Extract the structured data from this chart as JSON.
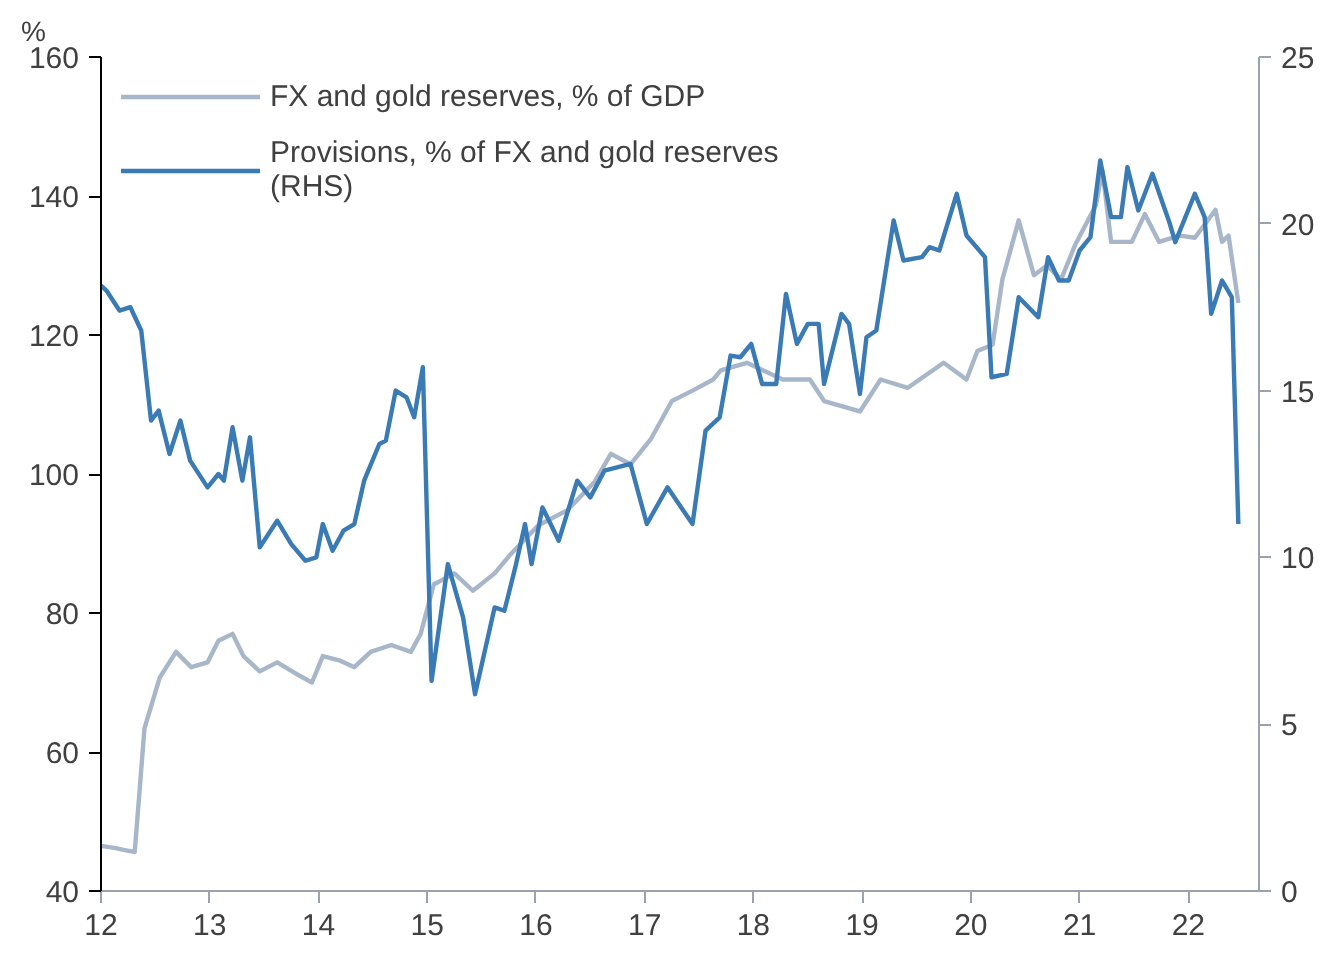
{
  "chart_data": {
    "type": "line",
    "ylabel": "%",
    "xlim": [
      12,
      22.65
    ],
    "xticks": [
      12,
      13,
      14,
      15,
      16,
      17,
      18,
      19,
      20,
      21,
      22
    ],
    "ylim": [
      40,
      160
    ],
    "yticks": [
      40,
      60,
      80,
      100,
      120,
      140,
      160
    ],
    "y2lim": [
      0,
      25
    ],
    "y2ticks": [
      0,
      5,
      10,
      15,
      20,
      25
    ],
    "grid": false,
    "legend": "top left",
    "series": [
      {
        "name": "FX and gold reserves, % of GDP",
        "color": "#a8b6ca",
        "x": [
          12.0,
          12.12,
          12.31,
          12.4,
          12.54,
          12.69,
          12.83,
          12.98,
          13.08,
          13.21,
          13.31,
          13.46,
          13.62,
          13.79,
          13.94,
          14.04,
          14.19,
          14.33,
          14.48,
          14.67,
          14.85,
          14.94,
          15.06,
          15.25,
          15.42,
          15.62,
          15.77,
          16.02,
          16.29,
          16.54,
          16.69,
          16.87,
          17.06,
          17.25,
          17.44,
          17.63,
          17.7,
          17.94,
          18.27,
          18.52,
          18.65,
          18.98,
          19.17,
          19.42,
          19.75,
          19.96,
          20.06,
          20.2,
          20.29,
          20.44,
          20.58,
          20.7,
          20.83,
          20.96,
          21.15,
          21.21,
          21.29,
          21.48,
          21.6,
          21.73,
          21.92,
          22.06,
          22.25,
          22.31,
          22.37,
          22.46
        ],
        "values": [
          46.5,
          46.2,
          45.6,
          63.4,
          70.7,
          74.4,
          72.2,
          72.9,
          76,
          77,
          73.8,
          71.6,
          72.9,
          71.3,
          70,
          73.8,
          73.2,
          72.2,
          74.4,
          75.4,
          74.4,
          77,
          84.1,
          85.7,
          83.2,
          85.7,
          88.5,
          92.6,
          94.8,
          98.9,
          102.9,
          101.4,
          105.1,
          110.5,
          112,
          113.6,
          114.9,
          116,
          113.6,
          113.6,
          110.5,
          109,
          113.6,
          112.4,
          116,
          113.6,
          117.7,
          118.6,
          128,
          136.5,
          128.6,
          130,
          128,
          133,
          138.7,
          143.7,
          133.4,
          133.4,
          137.4,
          133.4,
          134.3,
          134,
          138,
          133.4,
          134.3,
          124.6
        ]
      },
      {
        "name": "Provisions, % of FX and gold reserves\n(RHS)",
        "color": "#3a7ab5",
        "axis": "y2",
        "x": [
          12.0,
          12.05,
          12.17,
          12.27,
          12.37,
          12.46,
          12.53,
          12.63,
          12.73,
          12.82,
          12.98,
          13.08,
          13.13,
          13.21,
          13.3,
          13.37,
          13.46,
          13.62,
          13.75,
          13.88,
          13.98,
          14.04,
          14.13,
          14.23,
          14.33,
          14.42,
          14.56,
          14.62,
          14.71,
          14.81,
          14.88,
          14.96,
          15.04,
          15.19,
          15.33,
          15.44,
          15.62,
          15.71,
          15.81,
          15.9,
          15.96,
          16.06,
          16.21,
          16.38,
          16.5,
          16.63,
          16.87,
          17.02,
          17.21,
          17.44,
          17.56,
          17.69,
          17.79,
          17.88,
          17.98,
          18.08,
          18.21,
          18.3,
          18.4,
          18.5,
          18.6,
          18.65,
          18.81,
          18.88,
          18.98,
          19.04,
          19.13,
          19.29,
          19.38,
          19.55,
          19.62,
          19.71,
          19.87,
          19.96,
          20.13,
          20.19,
          20.33,
          20.44,
          20.62,
          20.71,
          20.81,
          20.9,
          21.0,
          21.1,
          21.19,
          21.29,
          21.38,
          21.44,
          21.54,
          21.67,
          21.83,
          21.88,
          22.06,
          22.15,
          22.21,
          22.31,
          22.4,
          22.46
        ],
        "values": [
          18.15,
          18.0,
          17.4,
          17.5,
          16.8,
          14.1,
          14.4,
          13.1,
          14.1,
          12.9,
          12.1,
          12.5,
          12.3,
          13.9,
          12.3,
          13.6,
          10.3,
          11.1,
          10.4,
          9.9,
          10.0,
          11.0,
          10.2,
          10.8,
          11.0,
          12.3,
          13.4,
          13.5,
          15.0,
          14.8,
          14.2,
          15.7,
          6.3,
          9.8,
          8.2,
          5.9,
          8.5,
          8.4,
          9.7,
          11.0,
          9.8,
          11.5,
          10.5,
          12.3,
          11.8,
          12.6,
          12.8,
          11.0,
          12.1,
          11.0,
          13.8,
          14.2,
          16.05,
          16.0,
          16.4,
          15.2,
          15.2,
          17.9,
          16.4,
          17.0,
          17.0,
          15.2,
          17.3,
          17.0,
          14.9,
          16.6,
          16.8,
          20.1,
          18.9,
          19.0,
          19.3,
          19.2,
          20.9,
          19.65,
          19.0,
          15.4,
          15.5,
          17.8,
          17.2,
          19.0,
          18.3,
          18.3,
          19.2,
          19.6,
          21.9,
          20.2,
          20.2,
          21.7,
          20.4,
          21.5,
          20.0,
          19.45,
          20.9,
          20.2,
          17.3,
          18.3,
          17.8,
          11.0
        ]
      }
    ]
  }
}
